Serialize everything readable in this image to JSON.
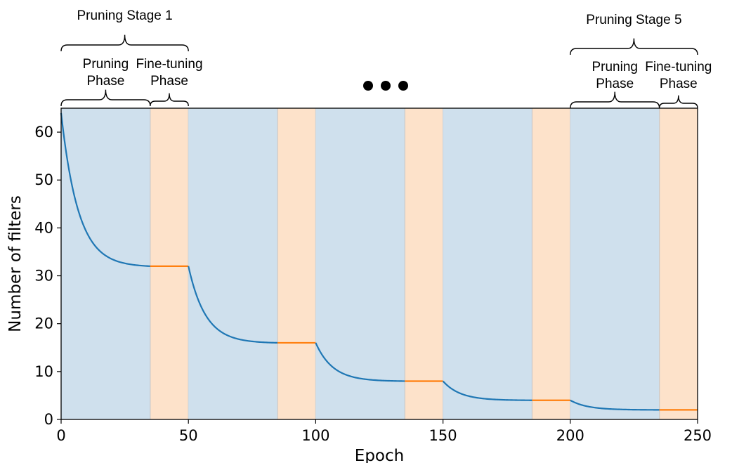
{
  "chart_data": {
    "type": "line",
    "xlabel": "Epoch",
    "ylabel": "Number of filters",
    "xlim": [
      0,
      250
    ],
    "ylim": [
      0,
      65
    ],
    "xticks": [
      0,
      50,
      100,
      150,
      200,
      250
    ],
    "yticks": [
      0,
      10,
      20,
      30,
      40,
      50,
      60
    ],
    "grid": false,
    "stages": [
      {
        "prune": [
          0,
          35
        ],
        "finetune": [
          35,
          50
        ],
        "start": 64,
        "end": 32
      },
      {
        "prune": [
          50,
          85
        ],
        "finetune": [
          85,
          100
        ],
        "start": 32,
        "end": 16
      },
      {
        "prune": [
          100,
          135
        ],
        "finetune": [
          135,
          150
        ],
        "start": 16,
        "end": 8
      },
      {
        "prune": [
          150,
          185
        ],
        "finetune": [
          185,
          200
        ],
        "start": 8,
        "end": 4
      },
      {
        "prune": [
          200,
          235
        ],
        "finetune": [
          235,
          250
        ],
        "start": 4,
        "end": 2
      }
    ],
    "colors": {
      "prune_band": "#cfe0ed",
      "finetune_band": "#fde2ca",
      "band_edge": "#c9c9c9",
      "prune_line": "#1f77b4",
      "finetune_line": "#ff7f0e"
    },
    "annotations": {
      "stage1": "Pruning Stage 1",
      "stage5": "Pruning Stage 5",
      "pruning_phase_line1": "Pruning",
      "pruning_phase_line2": "Phase",
      "finetune_phase_line1": "Fine-tuning",
      "finetune_phase_line2": "Phase"
    }
  }
}
